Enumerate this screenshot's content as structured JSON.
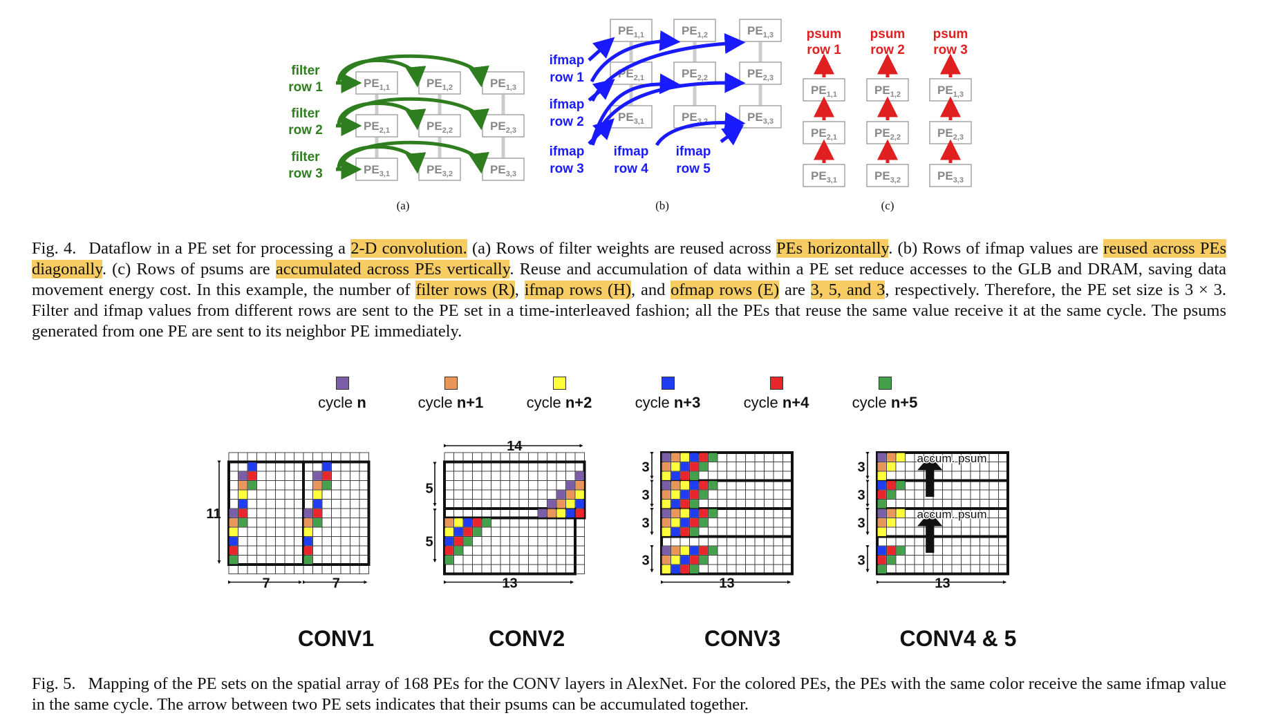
{
  "fig4": {
    "labels": {
      "filter": [
        "filter",
        "filter",
        "filter"
      ],
      "filter_rows": [
        "row 1",
        "row 2",
        "row 3"
      ],
      "ifmap": [
        "ifmap",
        "ifmap",
        "ifmap",
        "ifmap",
        "ifmap"
      ],
      "ifmap_rows": [
        "row 1",
        "row 2",
        "row 3",
        "row 4",
        "row 5"
      ],
      "psum": [
        "psum",
        "psum",
        "psum"
      ],
      "psum_rows": [
        "row 1",
        "row 2",
        "row 3"
      ],
      "pe_prefix": "PE"
    },
    "panel_labels": [
      "(a)",
      "(b)",
      "(c)"
    ],
    "colors": {
      "filter": "#2e7d1f",
      "ifmap": "#1a1aff",
      "psum": "#e02020",
      "pe_text": "#888888",
      "highlight": "#f7cd63"
    },
    "caption": {
      "fig_label": "Fig. 4.",
      "parts": [
        {
          "t": "Dataflow in a PE set for processing a ",
          "h": false
        },
        {
          "t": "2-D convolution.",
          "h": true
        },
        {
          "t": " (a) Rows of filter weights are reused across ",
          "h": false
        },
        {
          "t": "PEs horizontally",
          "h": true
        },
        {
          "t": ". (b) Rows of ifmap values are ",
          "h": false
        },
        {
          "t": "reused across PEs diagonally",
          "h": true
        },
        {
          "t": ". (c) Rows of psums are ",
          "h": false
        },
        {
          "t": "accumulated across PEs vertically",
          "h": true
        },
        {
          "t": ". Reuse and accumulation of data within a PE set reduce accesses to the GLB and DRAM, saving data movement energy cost. In this example, the number of ",
          "h": false
        },
        {
          "t": "filter rows (R)",
          "h": true
        },
        {
          "t": ", ",
          "h": false
        },
        {
          "t": "ifmap rows (H)",
          "h": true
        },
        {
          "t": ", and ",
          "h": false
        },
        {
          "t": "ofmap rows (E)",
          "h": true
        },
        {
          "t": " are ",
          "h": false
        },
        {
          "t": "3, 5, and 3",
          "h": true
        },
        {
          "t": ", respectively. Therefore, the PE set size is 3 × 3. Filter and ifmap values from different rows are sent to the PE set in a time-interleaved fashion; all the PEs that reuse the same value receive it at the same cycle. The psums generated from one PE are sent to its neighbor PE immediately.",
          "h": false
        }
      ]
    }
  },
  "fig5": {
    "legend": [
      {
        "pre": "cycle ",
        "bold": "n",
        "color": "#7b5ea7"
      },
      {
        "pre": "cycle ",
        "bold": "n+1",
        "color": "#e8965a"
      },
      {
        "pre": "cycle ",
        "bold": "n+2",
        "color": "#ffff3c"
      },
      {
        "pre": "cycle ",
        "bold": "n+3",
        "color": "#1f3cf0"
      },
      {
        "pre": "cycle ",
        "bold": "n+4",
        "color": "#e8262c"
      },
      {
        "pre": "cycle ",
        "bold": "n+5",
        "color": "#44a04a"
      }
    ],
    "diagram_names": [
      "CONV1",
      "CONV2",
      "CONV3",
      "CONV4 & 5"
    ],
    "dimension_labels": {
      "conv1": [
        "11",
        "7",
        "7"
      ],
      "conv2": [
        "14",
        "5",
        "5",
        "13"
      ],
      "conv3": [
        "3",
        "3",
        "3",
        "3",
        "13"
      ],
      "conv45": [
        "3",
        "3",
        "3",
        "3",
        "13"
      ]
    },
    "accum_label": "accum. psum",
    "caption": {
      "fig_label": "Fig. 5.",
      "text": "Mapping of the PE sets on the spatial array of 168 PEs for the CONV layers in AlexNet. For the colored PEs, the PEs with the same color receive the same ifmap value in the same cycle. The arrow between two PE sets indicates that their psums can be accumulated together."
    }
  }
}
